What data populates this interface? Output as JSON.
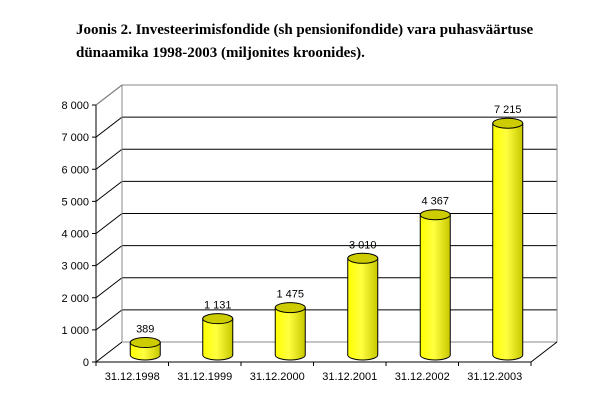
{
  "chart_data": {
    "type": "bar",
    "title_lines": [
      "Joonis 2. Investeerimisfondide (sh pensionifondide) vara puhasväärtuse",
      "dünaamika 1998-2003 (miljonites kroonides)."
    ],
    "categories": [
      "31.12.1998",
      "31.12.1999",
      "31.12.2000",
      "31.12.2001",
      "31.12.2002",
      "31.12.2003"
    ],
    "values": [
      389,
      1131,
      1475,
      3010,
      4367,
      7215
    ],
    "data_labels": [
      "389",
      "1 131",
      "1 475",
      "3 010",
      "4 367",
      "7 215"
    ],
    "ylim": [
      0,
      8000
    ],
    "yticks": [
      0,
      1000,
      2000,
      3000,
      4000,
      5000,
      6000,
      7000,
      8000
    ],
    "ytick_labels": [
      "0",
      "1 000",
      "2 000",
      "3 000",
      "4 000",
      "5 000",
      "6 000",
      "7 000",
      "8 000"
    ],
    "xlabel": "",
    "ylabel": "",
    "grid": true,
    "legend": "none",
    "bar_shape": "3d-cylinder",
    "colors": {
      "bar": "#ffff00",
      "bar_shade": "#c8c800",
      "top": "#cccc00"
    }
  }
}
